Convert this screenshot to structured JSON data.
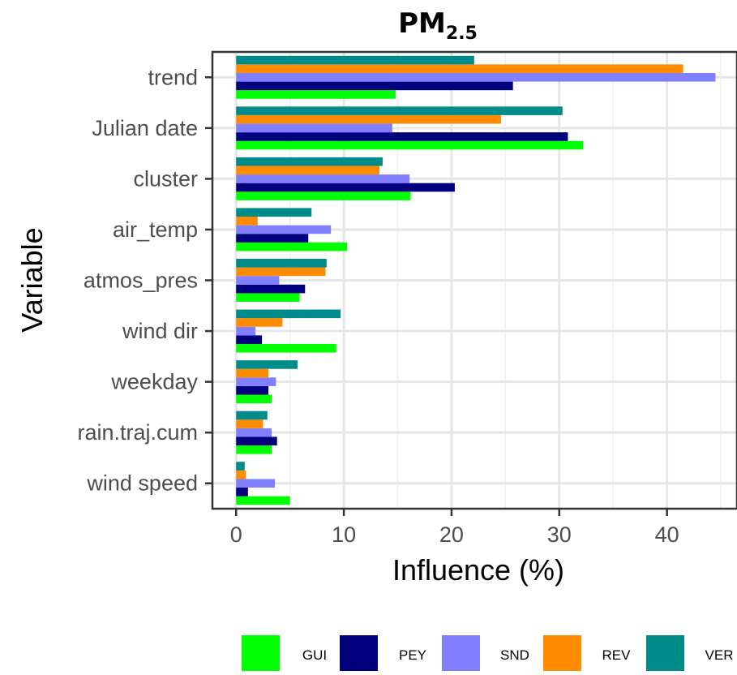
{
  "chart_data": {
    "type": "bar",
    "orientation": "horizontal",
    "title": "PM",
    "title_subscript": "2.5",
    "xlabel": "Influence (%)",
    "ylabel": "Variable",
    "xlim": [
      -2.2,
      46.5
    ],
    "xticks": [
      0,
      10,
      20,
      30,
      40
    ],
    "grid": true,
    "legend_position": "bottom",
    "categories": [
      "trend",
      "Julian date",
      "cluster",
      "air_temp",
      "atmos_pres",
      "wind dir",
      "weekday",
      "rain.traj.cum",
      "wind speed"
    ],
    "series": [
      {
        "name": "GUI",
        "color": "#00ff00",
        "values": [
          14.8,
          32.2,
          16.2,
          10.3,
          5.9,
          9.3,
          3.3,
          3.3,
          5.0
        ]
      },
      {
        "name": "PEY",
        "color": "#00007f",
        "values": [
          25.7,
          30.8,
          20.3,
          6.7,
          6.4,
          2.4,
          3.0,
          3.8,
          1.1
        ]
      },
      {
        "name": "SND",
        "color": "#7f7fff",
        "values": [
          44.5,
          14.5,
          16.1,
          8.8,
          4.0,
          1.8,
          3.7,
          3.3,
          3.6
        ]
      },
      {
        "name": "REV",
        "color": "#ff8c00",
        "values": [
          41.5,
          24.6,
          13.3,
          2.0,
          8.3,
          4.3,
          3.0,
          2.5,
          0.9
        ]
      },
      {
        "name": "VER",
        "color": "#008b8b",
        "values": [
          22.1,
          30.3,
          13.6,
          7.0,
          8.4,
          9.7,
          5.7,
          2.9,
          0.8
        ]
      }
    ]
  }
}
